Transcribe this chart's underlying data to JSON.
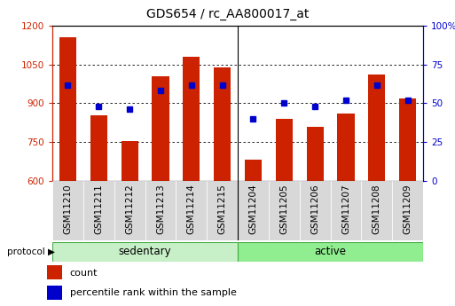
{
  "title": "GDS654 / rc_AA800017_at",
  "samples": [
    "GSM11210",
    "GSM11211",
    "GSM11212",
    "GSM11213",
    "GSM11214",
    "GSM11215",
    "GSM11204",
    "GSM11205",
    "GSM11206",
    "GSM11207",
    "GSM11208",
    "GSM11209"
  ],
  "counts": [
    1155,
    855,
    755,
    1005,
    1080,
    1040,
    680,
    840,
    810,
    860,
    1010,
    920
  ],
  "percentiles": [
    62,
    48,
    46,
    58,
    62,
    62,
    40,
    50,
    48,
    52,
    62,
    52
  ],
  "groups": [
    "sedentary",
    "sedentary",
    "sedentary",
    "sedentary",
    "sedentary",
    "sedentary",
    "active",
    "active",
    "active",
    "active",
    "active",
    "active"
  ],
  "group_colors": {
    "sedentary": "#c8f0c8",
    "active": "#90ee90"
  },
  "bar_color": "#cc2200",
  "dot_color": "#0000cc",
  "ylim_left": [
    600,
    1200
  ],
  "ylim_right": [
    0,
    100
  ],
  "yticks_left": [
    600,
    750,
    900,
    1050,
    1200
  ],
  "yticks_right": [
    0,
    25,
    50,
    75,
    100
  ],
  "yright_labels": [
    "0",
    "25",
    "50",
    "75",
    "100%"
  ],
  "bg_color": "#ffffff",
  "plot_bg": "#ffffff",
  "grid_color": "#000000",
  "left_axis_color": "#cc2200",
  "right_axis_color": "#0000cc",
  "legend_count_label": "count",
  "legend_pct_label": "percentile rank within the sample",
  "protocol_label": "protocol",
  "sedentary_label": "sedentary",
  "active_label": "active",
  "bar_width": 0.55,
  "tick_fontsize": 7.5,
  "title_fontsize": 10,
  "sedentary_count": 6,
  "n_samples": 12
}
